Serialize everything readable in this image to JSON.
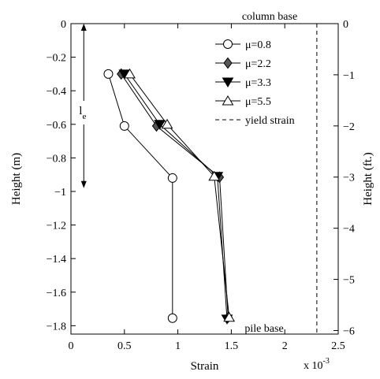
{
  "chart_data": {
    "type": "line",
    "xlabel": "Strain",
    "ylabel": "Height (m)",
    "ylabel_right": "Height (ft.)",
    "x_multiplier_label": "x 10",
    "x_multiplier_exp": "-3",
    "xlim": [
      0,
      2.5
    ],
    "ylim": [
      -1.85,
      0
    ],
    "ylim_right_ft": [
      -6.0696,
      0
    ],
    "x_ticks": [
      0,
      0.5,
      1,
      1.5,
      2,
      2.5
    ],
    "x_tick_labels": [
      "0",
      "0.5",
      "1",
      "1.5",
      "2",
      "2.5"
    ],
    "y_ticks": [
      0,
      -0.2,
      -0.4,
      -0.6,
      -0.8,
      -1,
      -1.2,
      -1.4,
      -1.6,
      -1.8
    ],
    "y_tick_labels": [
      "0",
      "−0.2",
      "−0.4",
      "−0.6",
      "−0.8",
      "−1",
      "−1.2",
      "−1.4",
      "−1.6",
      "−1.8"
    ],
    "y_ticks_right": [
      0,
      -1,
      -2,
      -3,
      -4,
      -5,
      -6
    ],
    "y_tick_labels_right": [
      "0",
      "−1",
      "−2",
      "−3",
      "−4",
      "−5",
      "−6"
    ],
    "grid": false,
    "legend_position": "top-right",
    "series": [
      {
        "name": "μ=0.8",
        "marker": "circle",
        "fill": "#ffffff",
        "x": [
          0.35,
          0.5,
          0.95,
          0.95
        ],
        "y": [
          -0.3,
          -0.61,
          -0.92,
          -1.755
        ]
      },
      {
        "name": "μ=2.2",
        "marker": "diamond",
        "fill": "#555555",
        "x": [
          0.47,
          0.8,
          1.39,
          1.47
        ],
        "y": [
          -0.3,
          -0.61,
          -0.915,
          -1.75
        ]
      },
      {
        "name": "μ=3.3",
        "marker": "triangle-down",
        "fill": "#000000",
        "x": [
          0.5,
          0.83,
          1.37,
          1.46
        ],
        "y": [
          -0.3,
          -0.6,
          -0.91,
          -1.76
        ]
      },
      {
        "name": "μ=5.5",
        "marker": "triangle-up",
        "fill": "#ffffff",
        "x": [
          0.55,
          0.9,
          1.34,
          1.48
        ],
        "y": [
          -0.3,
          -0.6,
          -0.91,
          -1.75
        ]
      }
    ],
    "yield_strain": {
      "name": "yield strain",
      "x": 2.3
    },
    "annotations": {
      "column_base": "column base",
      "pile_base": "pile base",
      "le_main": "l",
      "le_sub": "e"
    },
    "le_arrow": {
      "x": 0.12,
      "y_top": 0,
      "y_bottom": -0.98
    }
  }
}
